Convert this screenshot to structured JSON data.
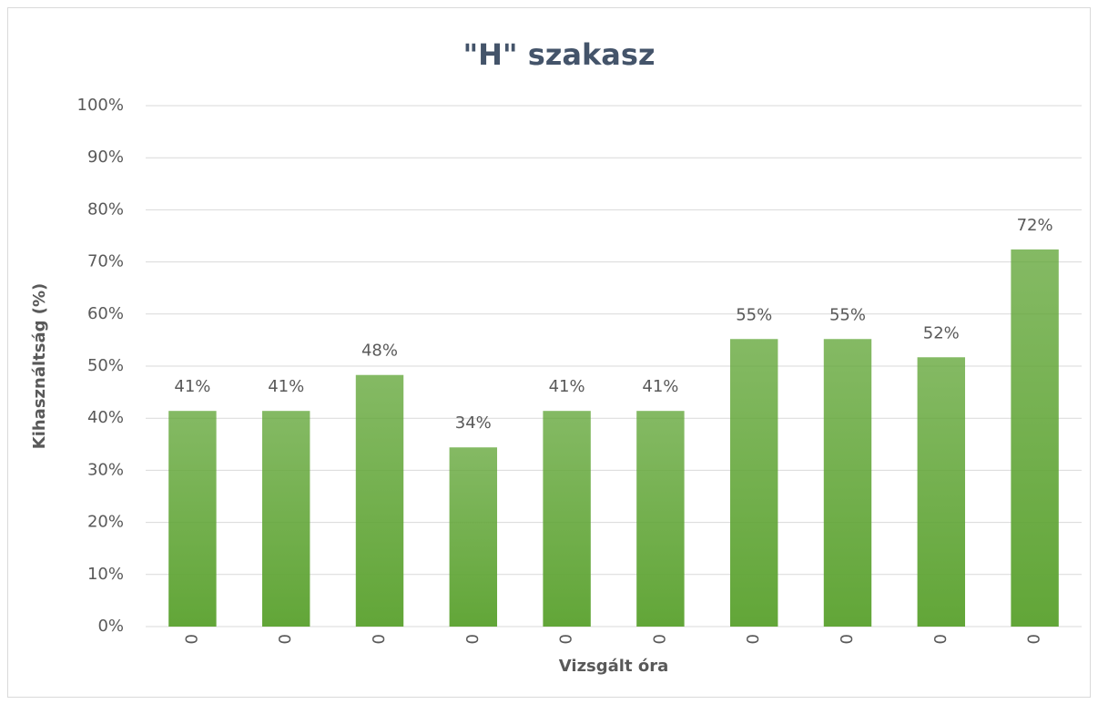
{
  "chart_data": {
    "type": "bar",
    "title": "\"H\" szakasz",
    "x_label": "Vizsgált óra",
    "y_label": "Kihasználtság (%)",
    "categories": [
      "0",
      "0",
      "0",
      "0",
      "0",
      "0",
      "0",
      "0",
      "0",
      "0"
    ],
    "values": [
      41.4,
      41.4,
      48.3,
      34.4,
      41.4,
      41.4,
      55.2,
      55.2,
      51.7,
      72.4
    ],
    "value_labels": [
      "41%",
      "41%",
      "48%",
      "34%",
      "41%",
      "41%",
      "55%",
      "55%",
      "52%",
      "72%"
    ],
    "color": "#62a638",
    "ylim": [
      0,
      100
    ],
    "yticks": [
      {
        "value": 0,
        "label": "0%"
      },
      {
        "value": 10,
        "label": "10%"
      },
      {
        "value": 20,
        "label": "20%"
      },
      {
        "value": 30,
        "label": "30%"
      },
      {
        "value": 40,
        "label": "40%"
      },
      {
        "value": 50,
        "label": "50%"
      },
      {
        "value": 60,
        "label": "60%"
      },
      {
        "value": 70,
        "label": "70%"
      },
      {
        "value": 80,
        "label": "80%"
      },
      {
        "value": 90,
        "label": "90%"
      },
      {
        "value": 100,
        "label": "100%"
      }
    ],
    "grid": true
  }
}
